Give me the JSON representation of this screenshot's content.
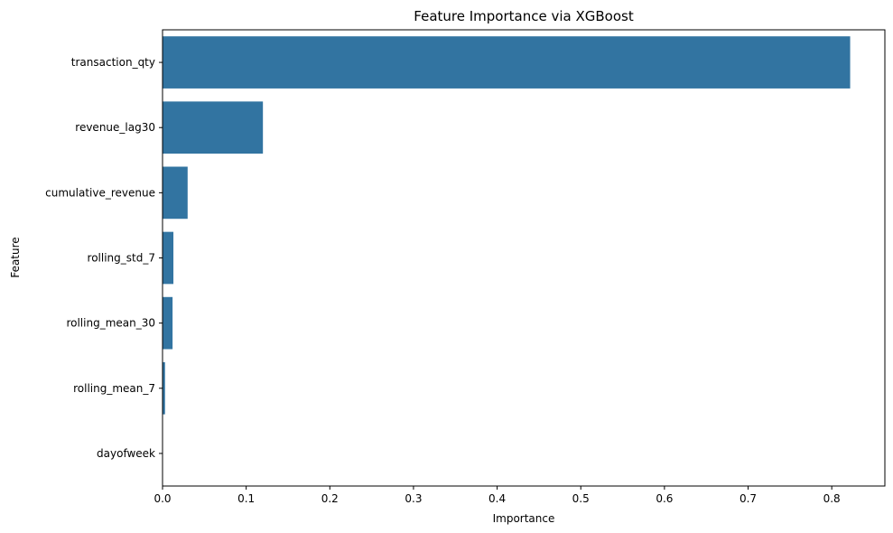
{
  "chart_data": {
    "type": "bar",
    "orientation": "horizontal",
    "title": "Feature Importance via XGBoost",
    "xlabel": "Importance",
    "ylabel": "Feature",
    "categories": [
      "transaction_qty",
      "revenue_lag30",
      "cumulative_revenue",
      "rolling_std_7",
      "rolling_mean_30",
      "rolling_mean_7",
      "dayofweek"
    ],
    "values": [
      0.822,
      0.12,
      0.03,
      0.013,
      0.012,
      0.003,
      0.0
    ],
    "xlim": [
      0,
      0.8635
    ],
    "xticks": [
      0,
      0.1,
      0.2,
      0.3,
      0.4,
      0.5,
      0.6,
      0.7,
      0.8
    ],
    "xtick_labels": [
      "0.0",
      "0.1",
      "0.2",
      "0.3",
      "0.4",
      "0.5",
      "0.6",
      "0.7",
      "0.8"
    ],
    "grid": false,
    "legend": false,
    "bar_color": "#3274a1"
  }
}
